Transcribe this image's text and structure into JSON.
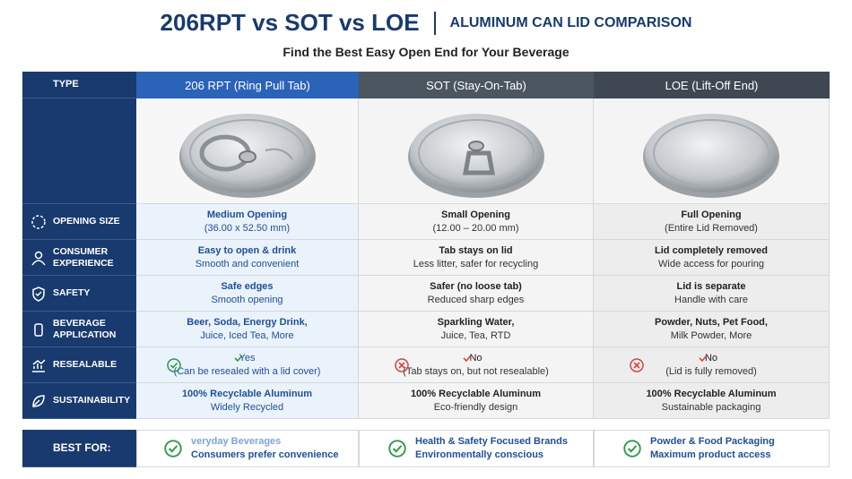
{
  "header": {
    "title": "206RPT vs SOT vs LOE",
    "subtitle_right": "ALUMINUM CAN LID COMPARISON",
    "tagline": "Find the Best Easy Open End for Your Beverage"
  },
  "table": {
    "corner": "TYPE",
    "columns": [
      "206 RPT (Ring Pull Tab)",
      "SOT (Stay-On-Tab)",
      "LOE (Lift-Off End)"
    ],
    "rows": [
      {
        "label": "OPENING SIZE",
        "cells": [
          [
            "Medium Opening",
            "(36.00 x 52.50 mm)"
          ],
          [
            "Small Opening",
            "(12.00 – 20.00 mm)"
          ],
          [
            "Full Opening",
            "(Entire Lid Removed)"
          ]
        ]
      },
      {
        "label": "CONSUMER EXPERIENCE",
        "cells": [
          [
            "Easy to open & drink",
            "Smooth and convenient"
          ],
          [
            "Tab stays on lid",
            "Less litter, safer for recycling"
          ],
          [
            "Lid completely removed",
            "Wide access for pouring"
          ]
        ]
      },
      {
        "label": "SAFETY",
        "cells": [
          [
            "Safe edges",
            "Smooth opening"
          ],
          [
            "Safer (no loose tab)",
            "Reduced sharp edges"
          ],
          [
            "Lid is separate",
            "Handle with care"
          ]
        ]
      },
      {
        "label": "BEVERAGE APPLICATION",
        "cells": [
          [
            "Beer, Soda, Energy Drink,",
            "Juice, Iced Tea, More"
          ],
          [
            "Sparkling Water,",
            "Juice, Tea, RTD"
          ],
          [
            "Powder, Nuts, Pet Food,",
            "Milk Powder, More"
          ]
        ]
      },
      {
        "label": "RESEALABLE",
        "cells": [
          [
            "Yes",
            "(Can be resealed with a lid cover)"
          ],
          [
            "No",
            "(Tab stays on, but not resealable)"
          ],
          [
            "No",
            "(Lid is fully removed)"
          ]
        ]
      },
      {
        "label": "SUSTAINABILITY",
        "cells": [
          [
            "100% Recyclable Aluminum",
            "Widely Recycled"
          ],
          [
            "100% Recyclable Aluminum",
            "Eco-friendly design"
          ],
          [
            "100% Recyclable Aluminum",
            "Sustainable packaging"
          ]
        ]
      }
    ],
    "best_for": {
      "label": "BEST FOR:",
      "cells": [
        [
          "veryday Beverages",
          "Consumers prefer convenience"
        ],
        [
          "Health & Safety Focused Brands",
          "Environmentally conscious"
        ],
        [
          "Powder & Food Packaging",
          "Maximum product access"
        ]
      ]
    }
  }
}
